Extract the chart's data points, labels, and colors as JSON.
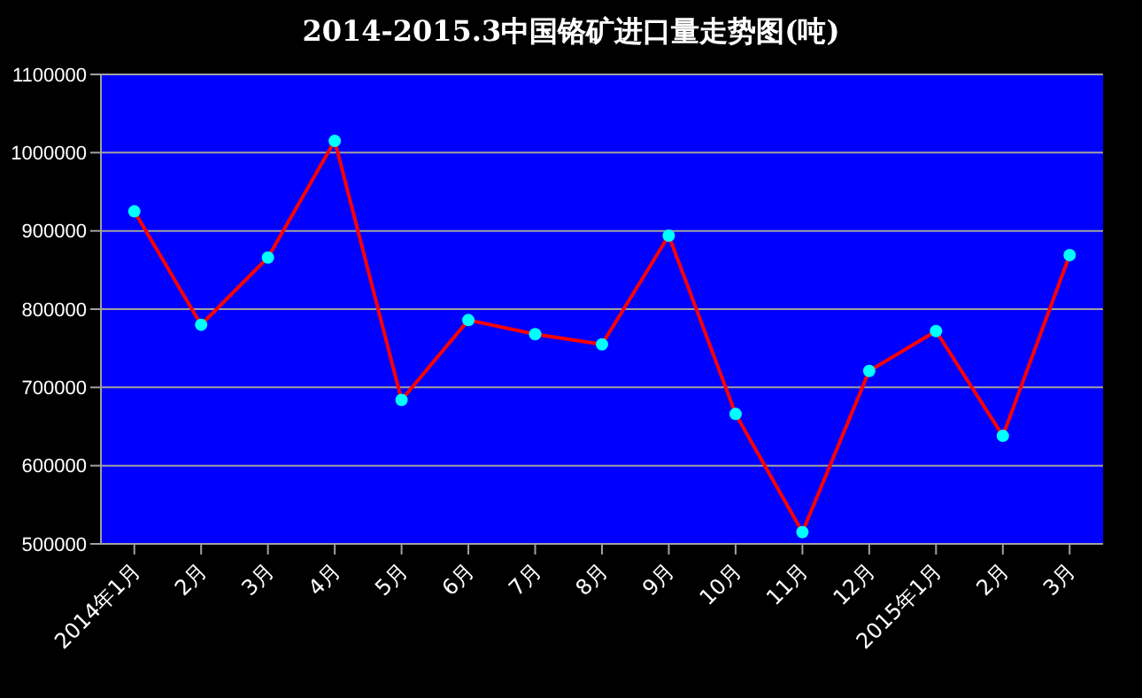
{
  "chart_data": {
    "type": "line",
    "title": "2014-2015.3中国铬矿进口量走势图(吨)",
    "categories": [
      "2014年1月",
      "2月",
      "3月",
      "4月",
      "5月",
      "6月",
      "7月",
      "8月",
      "9月",
      "10月",
      "11月",
      "12月",
      "2015年1月",
      "2月",
      "3月"
    ],
    "series": [
      {
        "color": "#ff0000",
        "colors": [
          "#00ffff",
          "#00ffff",
          "#00ffff",
          "#00ffff",
          "#00ffff",
          "#00ffff",
          "#00ffff",
          "#00ffff",
          "#00ffff",
          "#00ffff",
          "#00ffff",
          "#00ffff",
          "#00ffff",
          "#00ffff",
          "#00ffff"
        ],
        "values": [
          925000,
          780000,
          866000,
          1015000,
          684000,
          786000,
          768000,
          755000,
          894000,
          666000,
          515000,
          721000,
          772000,
          638000,
          869000
        ]
      }
    ],
    "ylim": [
      500000,
      1100000
    ],
    "yticks": [
      500000,
      600000,
      700000,
      800000,
      900000,
      1000000,
      1100000
    ],
    "grid": "y",
    "legend": false,
    "marker": "circle",
    "line_style": "solid"
  }
}
